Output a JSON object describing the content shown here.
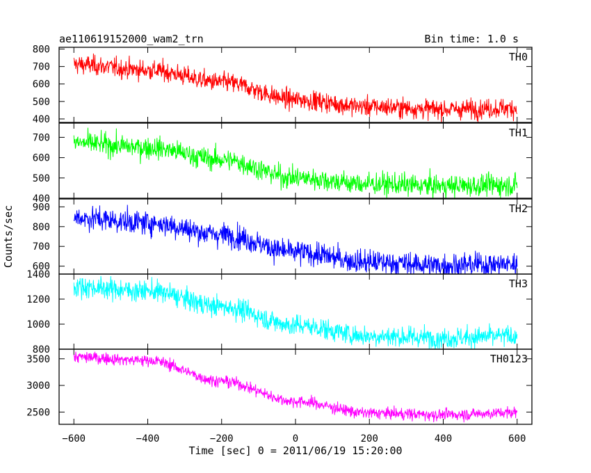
{
  "chart_data": {
    "type": "line",
    "title": "ae110619152000_wam2_trn",
    "subtitle": "Bin time: 1.0 s",
    "xlabel": "Time [sec] 0 = 2011/06/19 15:20:00",
    "ylabel": "Counts/sec",
    "xlim": [
      -640,
      640
    ],
    "x_ticks": [
      -600,
      -400,
      -200,
      0,
      200,
      400,
      600
    ],
    "x_tick_labels": [
      "−600",
      "−400",
      "−200",
      "0",
      "200",
      "400",
      "600"
    ],
    "bin_time_s": 1.0,
    "panels": [
      {
        "name": "TH0",
        "color": "#ff0000",
        "ylim": [
          380,
          810
        ],
        "y_ticks": [
          400,
          500,
          600,
          700,
          800
        ],
        "y_tick_labels": [
          "400",
          "500",
          "600",
          "700",
          "800"
        ],
        "trend": [
          [
            -600,
            712
          ],
          [
            -400,
            680
          ],
          [
            -200,
            610
          ],
          [
            0,
            510
          ],
          [
            200,
            470
          ],
          [
            400,
            455
          ],
          [
            600,
            462
          ]
        ],
        "noise_sd": 28
      },
      {
        "name": "TH1",
        "color": "#00ff00",
        "ylim": [
          400,
          770
        ],
        "y_ticks": [
          400,
          500,
          600,
          700
        ],
        "y_tick_labels": [
          "400",
          "500",
          "600",
          "700"
        ],
        "trend": [
          [
            -600,
            672
          ],
          [
            -400,
            650
          ],
          [
            -200,
            590
          ],
          [
            0,
            500
          ],
          [
            200,
            470
          ],
          [
            400,
            460
          ],
          [
            600,
            465
          ]
        ],
        "noise_sd": 27
      },
      {
        "name": "TH2",
        "color": "#0000ff",
        "ylim": [
          560,
          940
        ],
        "y_ticks": [
          600,
          700,
          800,
          900
        ],
        "y_tick_labels": [
          "600",
          "700",
          "800",
          "900"
        ],
        "trend": [
          [
            -600,
            845
          ],
          [
            -400,
            820
          ],
          [
            -200,
            760
          ],
          [
            0,
            670
          ],
          [
            200,
            620
          ],
          [
            400,
            605
          ],
          [
            600,
            610
          ]
        ],
        "noise_sd": 30
      },
      {
        "name": "TH3",
        "color": "#00ffff",
        "ylim": [
          800,
          1400
        ],
        "y_ticks": [
          800,
          1000,
          1200,
          1400
        ],
        "y_tick_labels": [
          "800",
          "1000",
          "1200",
          "1400"
        ],
        "trend": [
          [
            -600,
            1300
          ],
          [
            -400,
            1265
          ],
          [
            -200,
            1140
          ],
          [
            0,
            990
          ],
          [
            200,
            905
          ],
          [
            400,
            890
          ],
          [
            600,
            905
          ]
        ],
        "noise_sd": 42
      },
      {
        "name": "TH0123",
        "color": "#ff00ff",
        "ylim": [
          2270,
          3680
        ],
        "y_ticks": [
          2500,
          3000,
          3500
        ],
        "y_tick_labels": [
          "2500",
          "3000",
          "3500"
        ],
        "trend": [
          [
            -600,
            3530
          ],
          [
            -400,
            3470
          ],
          [
            -200,
            3080
          ],
          [
            0,
            2700
          ],
          [
            200,
            2480
          ],
          [
            400,
            2450
          ],
          [
            600,
            2490
          ]
        ],
        "noise_sd": 55
      }
    ]
  }
}
